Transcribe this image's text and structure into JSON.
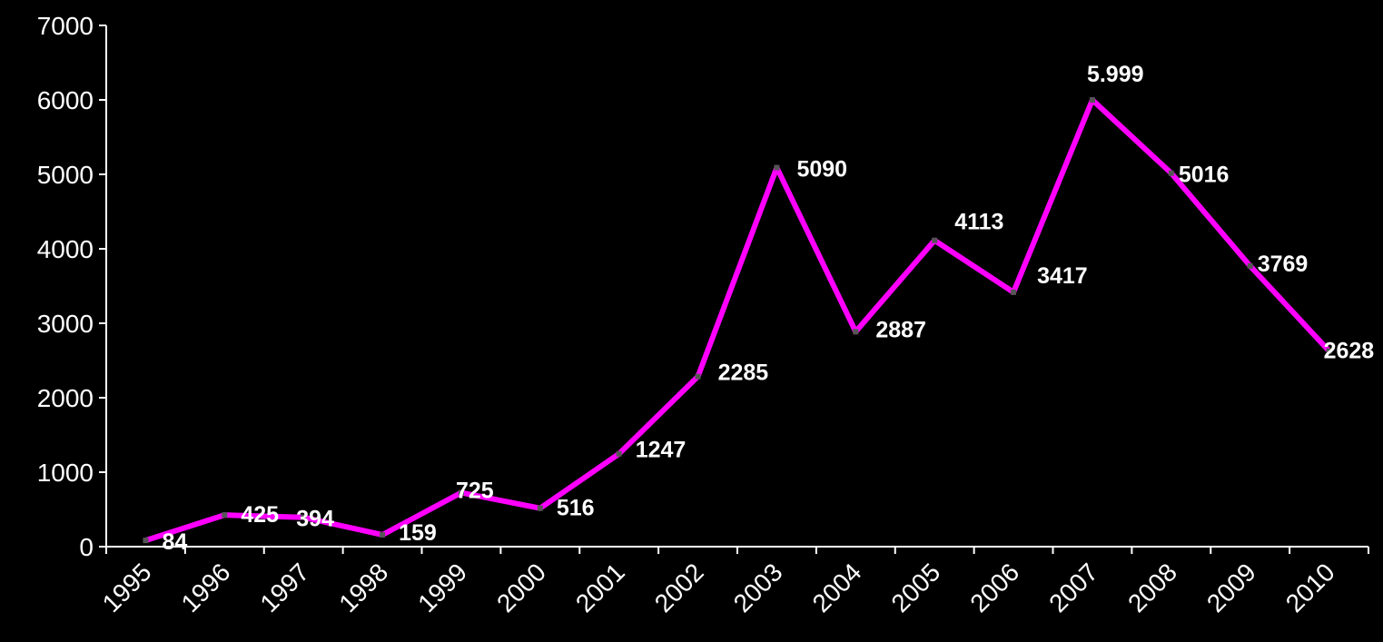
{
  "chart_data": {
    "type": "line",
    "title": "",
    "xlabel": "",
    "ylabel": "",
    "x": [
      "1995",
      "1996",
      "1997",
      "1998",
      "1999",
      "2000",
      "2001",
      "2002",
      "2003",
      "2004",
      "2005",
      "2006",
      "2007",
      "2008",
      "2009",
      "2010"
    ],
    "series": [
      {
        "values": [
          84,
          425,
          394,
          159,
          725,
          516,
          1247,
          2285,
          5090,
          2887,
          4113,
          3417,
          5999,
          5016,
          3769,
          2628
        ],
        "labels": [
          "84",
          "425",
          "394",
          "159",
          "725",
          "516",
          "1247",
          "2285",
          "5090",
          "2887",
          "4113",
          "3417",
          "5.999",
          "5016",
          "3769",
          "2628"
        ],
        "color": "#ff00ff"
      }
    ],
    "ylim": [
      0,
      7000
    ],
    "yticks": [
      "0",
      "1000",
      "2000",
      "3000",
      "4000",
      "5000",
      "6000",
      "7000"
    ],
    "grid": false,
    "legend": "none",
    "colors": {
      "background": "#000000",
      "axis": "#ffffff",
      "text": "#ffffff",
      "line": "#ff00ff",
      "marker": "#555555"
    }
  }
}
